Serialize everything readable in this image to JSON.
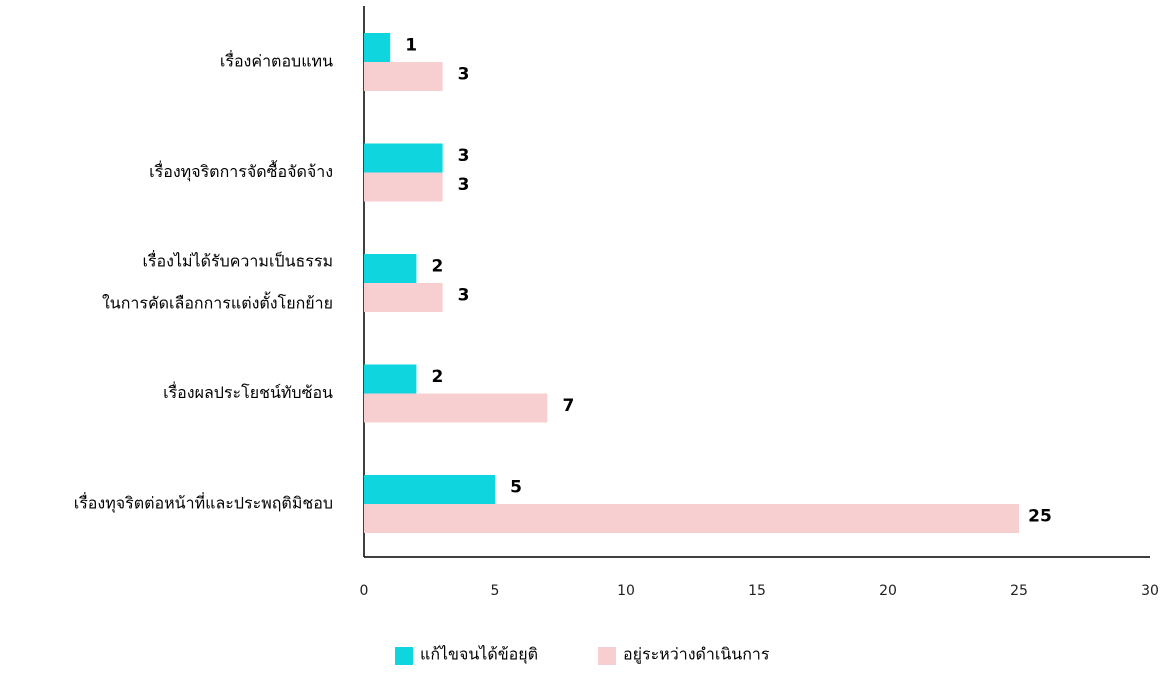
{
  "chart_data": {
    "type": "bar",
    "orientation": "horizontal",
    "categories": [
      [
        "เรื่องค่าตอบแทน"
      ],
      [
        "เรื่องทุจริตการจัดซื้อจัดจ้าง"
      ],
      [
        "เรื่องไม่ได้รับความเป็นธรรม",
        "ในการคัดเลือกการแต่งตั้งโยกย้าย"
      ],
      [
        "เรื่องผลประโยชน์ทับซ้อน"
      ],
      [
        "เรื่องทุจริตต่อหน้าที่และประพฤติมิชอบ"
      ]
    ],
    "series": [
      {
        "name": "แก้ไขจนได้ข้อยุติ",
        "color": "#0fd6de",
        "values": [
          1,
          3,
          2,
          2,
          5
        ]
      },
      {
        "name": "อยู่ระหว่างดำเนินการ",
        "color": "#f8cfd0",
        "values": [
          3,
          3,
          3,
          7,
          25
        ]
      }
    ],
    "xlim": [
      0,
      30
    ],
    "xticks": [
      0,
      5,
      10,
      15,
      20,
      25,
      30
    ],
    "legend": "bottom"
  }
}
